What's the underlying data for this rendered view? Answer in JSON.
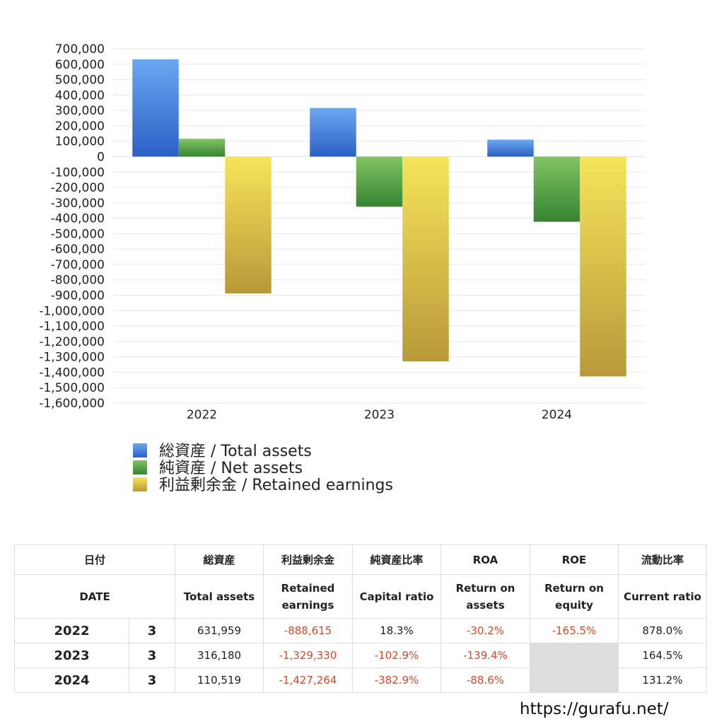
{
  "chart_data": {
    "type": "bar",
    "categories": [
      "2022",
      "2023",
      "2024"
    ],
    "series": [
      {
        "name": "総資産 / Total assets",
        "color": "#3f7fdc",
        "values": [
          631959,
          316180,
          110519
        ]
      },
      {
        "name": "純資産 / Net assets",
        "color": "#4e9e3f",
        "values": [
          115648,
          -325349,
          -423177
        ]
      },
      {
        "name": "利益剰余金 / Retained earnings",
        "color": "#d9c245",
        "values": [
          -888615,
          -1329330,
          -1427264
        ]
      }
    ],
    "ylim": [
      -1600000,
      700000
    ],
    "yticks": [
      {
        "value": 700000,
        "label": "700,000"
      },
      {
        "value": 600000,
        "label": "600,000"
      },
      {
        "value": 500000,
        "label": "500,000"
      },
      {
        "value": 400000,
        "label": "400,000"
      },
      {
        "value": 300000,
        "label": "300,000"
      },
      {
        "value": 200000,
        "label": "200,000"
      },
      {
        "value": 100000,
        "label": "100,000"
      },
      0,
      {
        "value": -100000,
        "label": "-100,000"
      },
      {
        "value": -200000,
        "label": "-200,000"
      },
      {
        "value": -300000,
        "label": "-300,000"
      },
      {
        "value": -400000,
        "label": "-400,000"
      },
      {
        "value": -500000,
        "label": "-500,000"
      },
      {
        "value": -600000,
        "label": "-600,000"
      },
      {
        "value": -700000,
        "label": "-700,000"
      },
      {
        "value": -800000,
        "label": "-800,000"
      },
      {
        "value": -900000,
        "label": "-900,000"
      },
      {
        "value": -1000000,
        "label": "-1,000,000"
      },
      {
        "value": -1100000,
        "label": "-1,100,000"
      },
      {
        "value": -1200000,
        "label": "-1,200,000"
      },
      {
        "value": -1300000,
        "label": "-1,300,000"
      },
      {
        "value": -1400000,
        "label": "-1,400,000"
      },
      {
        "value": -1500000,
        "label": "-1,500,000"
      },
      {
        "value": -1600000,
        "label": "-1,600,000"
      }
    ],
    "grid": true
  },
  "table": {
    "header_jp": [
      "日付",
      "総資産",
      "利益剰余金",
      "純資産比率",
      "ROA",
      "ROE",
      "流動比率"
    ],
    "header_en": [
      "DATE",
      "Total assets",
      "Retained earnings",
      "Capital ratio",
      "Return on assets",
      "Return on equity",
      "Current ratio"
    ],
    "rows": [
      [
        "2022",
        "3",
        "631,959",
        "-888,615",
        "18.3%",
        "-30.2%",
        "-165.5%",
        "878.0%"
      ],
      [
        "2023",
        "3",
        "316,180",
        "-1,329,330",
        "-102.9%",
        "-139.4%",
        null,
        "164.5%"
      ],
      [
        "2024",
        "3",
        "110,519",
        "-1,427,264",
        "-382.9%",
        "-88.6%",
        null,
        "131.2%"
      ]
    ]
  },
  "footer": {
    "url": "https://gurafu.net/"
  }
}
